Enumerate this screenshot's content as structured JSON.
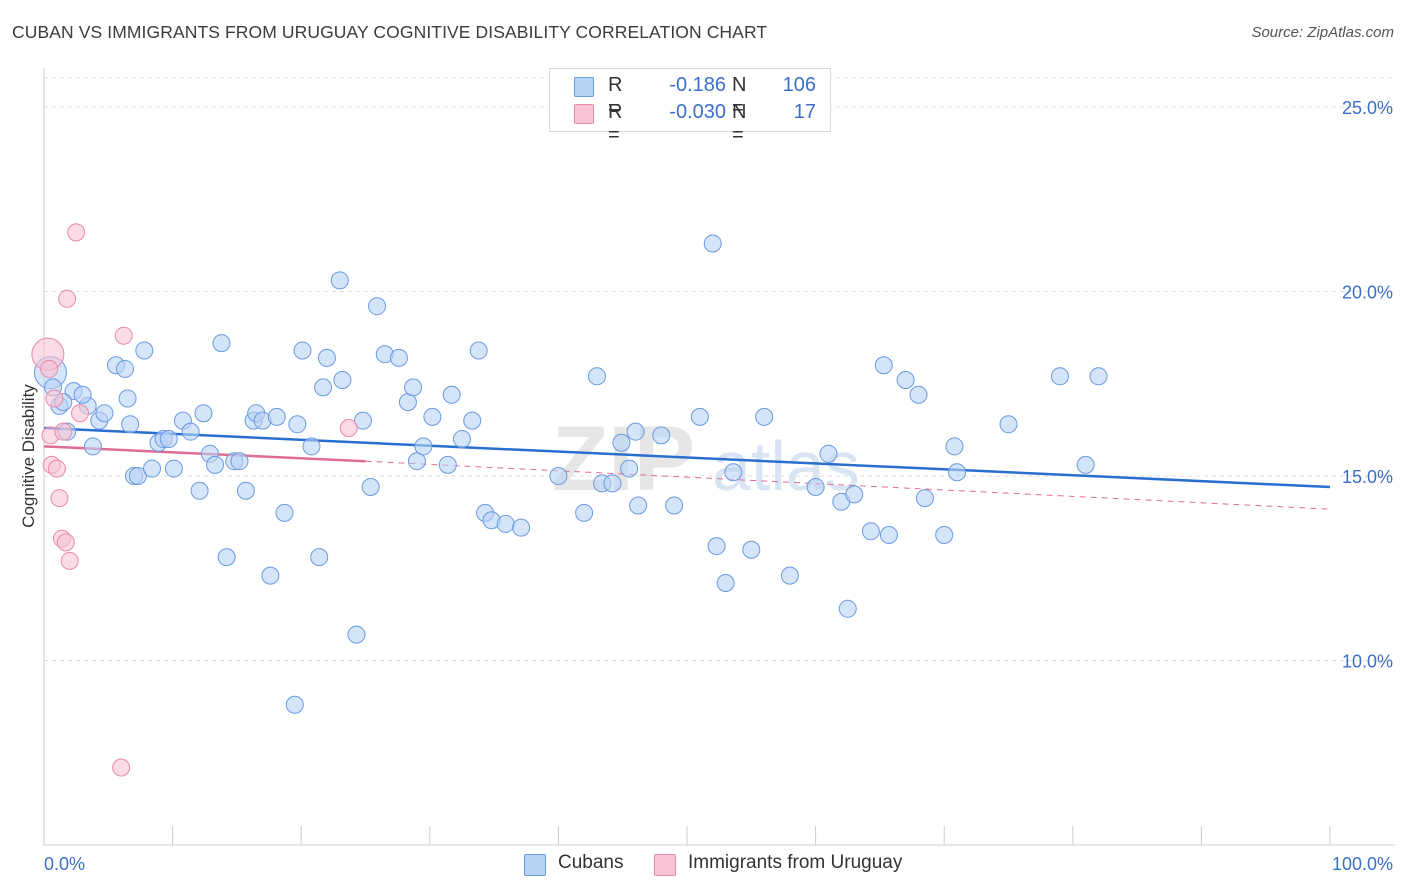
{
  "title": "CUBAN VS IMMIGRANTS FROM URUGUAY COGNITIVE DISABILITY CORRELATION CHART",
  "source": "Source: ZipAtlas.com",
  "watermark": {
    "zip": "ZIP",
    "atlas": "atlas"
  },
  "legend": {
    "rows": [
      {
        "r_label": "R =",
        "r_value": "-0.186",
        "n_label": "N =",
        "n_value": "106"
      },
      {
        "r_label": "R =",
        "r_value": "-0.030",
        "n_label": "N =",
        "n_value": "17"
      }
    ]
  },
  "colors": {
    "cubans_fill": "#b8d2f5",
    "cubans_stroke": "#6a9ae0",
    "cubans_line": "#2a6fd0",
    "uruguay_fill": "#f8c3d4",
    "uruguay_stroke": "#e88aa8",
    "uruguay_line": "#e06c96",
    "axis_text": "#3b6fc9",
    "grid": "#dddddd"
  },
  "chart_data": {
    "type": "scatter",
    "title": "CUBAN VS IMMIGRANTS FROM URUGUAY COGNITIVE DISABILITY CORRELATION CHART",
    "xlabel": "",
    "ylabel": "Cognitive Disability",
    "xlim": [
      0,
      100
    ],
    "ylim": [
      5.0,
      26.0
    ],
    "x_tick_labels": [
      "0.0%",
      "100.0%"
    ],
    "y_ticks": [
      10,
      15,
      20,
      25
    ],
    "y_tick_labels": [
      "10.0%",
      "15.0%",
      "20.0%",
      "25.0%"
    ],
    "grid": true,
    "legend_position": "top-center",
    "series": [
      {
        "name": "Cubans",
        "r": -0.186,
        "n": 106,
        "trend": {
          "x": [
            0,
            100
          ],
          "y": [
            16.3,
            14.7
          ],
          "dashed_to": null
        },
        "points": [
          [
            0.5,
            17.8
          ],
          [
            0.7,
            17.4
          ],
          [
            1.2,
            16.9
          ],
          [
            1.8,
            16.2
          ],
          [
            2.3,
            17.3
          ],
          [
            3.4,
            16.9
          ],
          [
            3.8,
            15.8
          ],
          [
            4.3,
            16.5
          ],
          [
            4.7,
            16.7
          ],
          [
            5.6,
            18.0
          ],
          [
            6.3,
            17.9
          ],
          [
            6.5,
            17.1
          ],
          [
            6.7,
            16.4
          ],
          [
            7.0,
            15.0
          ],
          [
            7.3,
            15.0
          ],
          [
            7.8,
            18.4
          ],
          [
            8.4,
            15.2
          ],
          [
            8.9,
            15.9
          ],
          [
            9.3,
            16.0
          ],
          [
            9.7,
            16.0
          ],
          [
            10.1,
            15.2
          ],
          [
            10.8,
            16.5
          ],
          [
            11.4,
            16.2
          ],
          [
            12.1,
            14.6
          ],
          [
            12.4,
            16.7
          ],
          [
            12.9,
            15.6
          ],
          [
            13.3,
            15.3
          ],
          [
            13.8,
            18.6
          ],
          [
            14.2,
            12.8
          ],
          [
            14.8,
            15.4
          ],
          [
            15.2,
            15.4
          ],
          [
            15.7,
            14.6
          ],
          [
            16.3,
            16.5
          ],
          [
            16.5,
            16.7
          ],
          [
            17.0,
            16.5
          ],
          [
            17.6,
            12.3
          ],
          [
            18.1,
            16.6
          ],
          [
            18.7,
            14.0
          ],
          [
            19.5,
            8.8
          ],
          [
            19.7,
            16.4
          ],
          [
            20.1,
            18.4
          ],
          [
            20.8,
            15.8
          ],
          [
            21.4,
            12.8
          ],
          [
            21.7,
            17.4
          ],
          [
            22.0,
            18.2
          ],
          [
            23.0,
            20.3
          ],
          [
            23.2,
            17.6
          ],
          [
            24.3,
            10.7
          ],
          [
            24.8,
            16.5
          ],
          [
            25.4,
            14.7
          ],
          [
            25.9,
            19.6
          ],
          [
            26.5,
            18.3
          ],
          [
            27.6,
            18.2
          ],
          [
            28.3,
            17.0
          ],
          [
            28.7,
            17.4
          ],
          [
            29.0,
            15.4
          ],
          [
            29.5,
            15.8
          ],
          [
            30.2,
            16.6
          ],
          [
            31.4,
            15.3
          ],
          [
            31.7,
            17.2
          ],
          [
            32.5,
            16.0
          ],
          [
            33.3,
            16.5
          ],
          [
            33.8,
            18.4
          ],
          [
            34.3,
            14.0
          ],
          [
            34.8,
            13.8
          ],
          [
            35.9,
            13.7
          ],
          [
            37.1,
            13.6
          ],
          [
            40.0,
            15.0
          ],
          [
            42.0,
            14.0
          ],
          [
            43.0,
            17.7
          ],
          [
            43.4,
            14.8
          ],
          [
            44.2,
            14.8
          ],
          [
            44.9,
            15.9
          ],
          [
            45.5,
            15.2
          ],
          [
            46.0,
            16.2
          ],
          [
            46.2,
            14.2
          ],
          [
            48.0,
            16.1
          ],
          [
            49.0,
            14.2
          ],
          [
            51.0,
            16.6
          ],
          [
            52.0,
            21.3
          ],
          [
            52.3,
            13.1
          ],
          [
            53.0,
            12.1
          ],
          [
            53.6,
            15.1
          ],
          [
            55.0,
            13.0
          ],
          [
            56.0,
            16.6
          ],
          [
            58.0,
            12.3
          ],
          [
            60.0,
            14.7
          ],
          [
            61.0,
            15.6
          ],
          [
            62.0,
            14.3
          ],
          [
            62.5,
            11.4
          ],
          [
            63.0,
            14.5
          ],
          [
            64.3,
            13.5
          ],
          [
            65.3,
            18.0
          ],
          [
            65.7,
            13.4
          ],
          [
            67.0,
            17.6
          ],
          [
            68.0,
            17.2
          ],
          [
            68.5,
            14.4
          ],
          [
            70.0,
            13.4
          ],
          [
            70.8,
            15.8
          ],
          [
            71.0,
            15.1
          ],
          [
            75.0,
            16.4
          ],
          [
            79.0,
            17.7
          ],
          [
            81.0,
            15.3
          ],
          [
            82.0,
            17.7
          ],
          [
            3.0,
            17.2
          ],
          [
            1.5,
            17.0
          ]
        ]
      },
      {
        "name": "Immigrants from Uruguay",
        "r": -0.03,
        "n": 17,
        "trend": {
          "x": [
            0,
            25
          ],
          "y": [
            15.8,
            15.4
          ],
          "dashed_to": {
            "x": 100,
            "y": 14.1
          }
        },
        "points": [
          [
            0.3,
            18.3
          ],
          [
            0.4,
            17.9
          ],
          [
            0.5,
            16.1
          ],
          [
            0.6,
            15.3
          ],
          [
            0.8,
            17.1
          ],
          [
            1.0,
            15.2
          ],
          [
            1.2,
            14.4
          ],
          [
            1.4,
            13.3
          ],
          [
            1.5,
            16.2
          ],
          [
            1.7,
            13.2
          ],
          [
            1.8,
            19.8
          ],
          [
            2.0,
            12.7
          ],
          [
            2.5,
            21.6
          ],
          [
            2.8,
            16.7
          ],
          [
            6.2,
            18.8
          ],
          [
            6.0,
            7.1
          ],
          [
            23.7,
            16.3
          ]
        ]
      }
    ]
  }
}
